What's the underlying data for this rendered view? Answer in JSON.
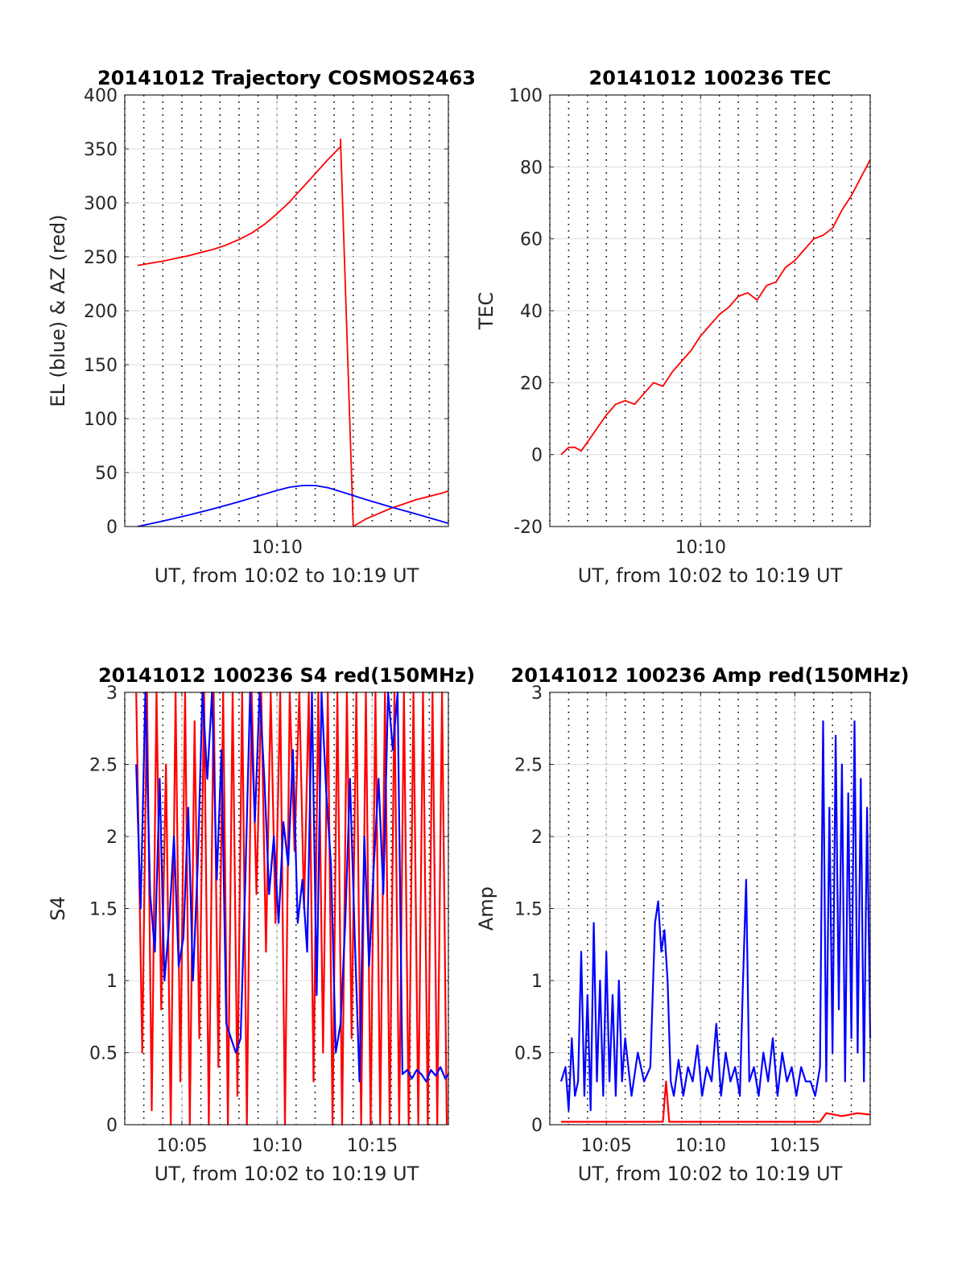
{
  "chart_data": [
    {
      "type": "line",
      "title": "20141012 Trajectory COSMOS2463",
      "xlabel": "UT, from 10:02 to 10:19 UT",
      "ylabel": "EL (blue) & AZ (red)",
      "xlim": [
        "10:02",
        "10:19"
      ],
      "ylim": [
        0,
        400
      ],
      "xticks": [
        "10:10"
      ],
      "yticks": [
        "0",
        "50",
        "100",
        "150",
        "200",
        "250",
        "300",
        "350",
        "400"
      ],
      "grid": true,
      "colors": {
        "AZ": "#ff0000",
        "EL": "#0000ff"
      },
      "series": [
        {
          "key": "AZ",
          "color": "#ff0000",
          "x": [
            "10:02:40",
            "10:03:20",
            "10:04:00",
            "10:04:40",
            "10:05:20",
            "10:06:00",
            "10:06:40",
            "10:07:20",
            "10:08:00",
            "10:08:40",
            "10:09:20",
            "10:10:00",
            "10:10:40",
            "10:11:20",
            "10:12:00",
            "10:12:40",
            "10:13:20",
            "10:13:20",
            "10:14:00",
            "10:14:40",
            "10:15:20",
            "10:16:00",
            "10:16:40",
            "10:17:20",
            "10:18:00",
            "10:18:40",
            "10:19:00"
          ],
          "values": [
            242,
            244,
            246,
            248.5,
            251,
            254,
            257,
            261,
            266,
            272,
            280,
            290,
            301,
            314,
            327,
            340,
            352,
            359,
            0,
            7,
            12,
            17,
            21,
            25,
            28,
            31,
            33
          ]
        },
        {
          "key": "EL",
          "color": "#0000ff",
          "x": [
            "10:02:40",
            "10:04:00",
            "10:05:20",
            "10:06:40",
            "10:08:00",
            "10:09:20",
            "10:10:00",
            "10:10:40",
            "10:11:20",
            "10:12:00",
            "10:12:40",
            "10:13:20",
            "10:14:40",
            "10:16:00",
            "10:17:20",
            "10:19:00"
          ],
          "values": [
            0,
            5,
            10.5,
            16.5,
            23,
            30,
            33.5,
            36.5,
            38,
            38,
            36,
            32.5,
            25,
            18,
            11.5,
            3
          ]
        }
      ]
    },
    {
      "type": "line",
      "title": "20141012 100236 TEC",
      "xlabel": "UT, from 10:02 to 10:19 UT",
      "ylabel": "TEC",
      "xlim": [
        "10:02",
        "10:19"
      ],
      "ylim": [
        -20,
        100
      ],
      "xticks": [
        "10:10"
      ],
      "yticks": [
        "-20",
        "0",
        "20",
        "40",
        "60",
        "80",
        "100"
      ],
      "grid": true,
      "series": [
        {
          "key": "TEC",
          "color": "#ff0000",
          "x": [
            "10:02:36",
            "10:03:00",
            "10:03:20",
            "10:03:40",
            "10:04:20",
            "10:05:00",
            "10:05:30",
            "10:06:00",
            "10:06:30",
            "10:07:00",
            "10:07:30",
            "10:08:00",
            "10:08:30",
            "10:09:00",
            "10:09:30",
            "10:10:00",
            "10:10:30",
            "10:11:00",
            "10:11:30",
            "10:12:00",
            "10:12:30",
            "10:13:00",
            "10:13:30",
            "10:14:00",
            "10:14:30",
            "10:15:00",
            "10:15:30",
            "10:16:00",
            "10:16:30",
            "10:17:00",
            "10:17:30",
            "10:18:00",
            "10:18:30",
            "10:19:00"
          ],
          "values": [
            0,
            2,
            2,
            1,
            6,
            11,
            14,
            15,
            14,
            17,
            20,
            19,
            23,
            26,
            29,
            33,
            36,
            39,
            41,
            44,
            45,
            43,
            47,
            48,
            52,
            54,
            57,
            60,
            61,
            63,
            68,
            72,
            77,
            82
          ]
        }
      ]
    },
    {
      "type": "line",
      "title": "20141012 100236 S4 red(150MHz)",
      "xlabel": "UT, from 10:02 to 10:19 UT",
      "ylabel": "S4",
      "xlim": [
        "10:02",
        "10:19"
      ],
      "ylim": [
        0,
        3
      ],
      "xticks": [
        "10:05",
        "10:10",
        "10:15"
      ],
      "yticks": [
        "0",
        "0.5",
        "1",
        "1.5",
        "2",
        "2.5",
        "3"
      ],
      "grid": true,
      "series": [
        {
          "key": "S4-red",
          "color": "#ff0000",
          "x": [
            "10:02:36",
            "10:02:55",
            "10:03:10",
            "10:03:25",
            "10:03:40",
            "10:03:55",
            "10:04:10",
            "10:04:25",
            "10:04:40",
            "10:04:55",
            "10:05:10",
            "10:05:25",
            "10:05:40",
            "10:05:55",
            "10:06:10",
            "10:06:25",
            "10:06:40",
            "10:06:55",
            "10:07:10",
            "10:07:25",
            "10:07:40",
            "10:07:55",
            "10:08:10",
            "10:08:25",
            "10:08:40",
            "10:08:55",
            "10:09:10",
            "10:09:25",
            "10:09:40",
            "10:09:55",
            "10:10:10",
            "10:10:25",
            "10:10:40",
            "10:10:55",
            "10:11:10",
            "10:11:25",
            "10:11:40",
            "10:11:55",
            "10:12:10",
            "10:12:25",
            "10:12:40",
            "10:12:55",
            "10:13:10",
            "10:13:25",
            "10:13:40",
            "10:13:55",
            "10:14:10",
            "10:14:25",
            "10:14:40",
            "10:14:55",
            "10:15:10",
            "10:15:25",
            "10:15:40",
            "10:15:55",
            "10:16:10",
            "10:16:25",
            "10:16:40",
            "10:16:55",
            "10:17:10",
            "10:17:25",
            "10:17:40",
            "10:17:55",
            "10:18:10",
            "10:18:25",
            "10:18:40",
            "10:18:55"
          ],
          "values": [
            3,
            0.5,
            3,
            0.1,
            3,
            0.8,
            2.5,
            0,
            3,
            0.3,
            3,
            0,
            2.8,
            0.6,
            3,
            0,
            3,
            0.4,
            3,
            0,
            3,
            0.2,
            3,
            0,
            3,
            1.6,
            3,
            1.2,
            3,
            1.4,
            3,
            0,
            3,
            1.9,
            3,
            1.5,
            3,
            0.3,
            3,
            0.5,
            3,
            0,
            3,
            0,
            3,
            0.6,
            3,
            0,
            3,
            0,
            3,
            0,
            3,
            0,
            3,
            0,
            3,
            0,
            3,
            0,
            3,
            0,
            3,
            0,
            3,
            0
          ]
        },
        {
          "key": "S4-blue",
          "color": "#0000ff",
          "x": [
            "10:02:36",
            "10:02:50",
            "10:03:05",
            "10:03:20",
            "10:03:35",
            "10:03:50",
            "10:04:05",
            "10:04:20",
            "10:04:35",
            "10:04:50",
            "10:05:05",
            "10:05:20",
            "10:05:35",
            "10:05:50",
            "10:06:05",
            "10:06:20",
            "10:06:35",
            "10:06:50",
            "10:07:05",
            "10:07:20",
            "10:07:35",
            "10:07:50",
            "10:08:05",
            "10:08:20",
            "10:08:35",
            "10:08:50",
            "10:09:05",
            "10:09:20",
            "10:09:35",
            "10:09:50",
            "10:10:05",
            "10:10:20",
            "10:10:35",
            "10:10:50",
            "10:11:05",
            "10:11:20",
            "10:11:35",
            "10:11:50",
            "10:12:05",
            "10:12:20",
            "10:12:35",
            "10:12:50",
            "10:13:05",
            "10:13:20",
            "10:13:35",
            "10:13:50",
            "10:14:05",
            "10:14:20",
            "10:14:35",
            "10:14:50",
            "10:15:05",
            "10:15:20",
            "10:15:35",
            "10:15:50",
            "10:16:05",
            "10:16:20",
            "10:16:35",
            "10:16:50",
            "10:17:05",
            "10:17:20",
            "10:17:35",
            "10:17:50",
            "10:18:05",
            "10:18:20",
            "10:18:35",
            "10:18:50",
            "10:19:00"
          ],
          "values": [
            2.5,
            1.5,
            3,
            1.6,
            1.2,
            2.4,
            1.0,
            1.4,
            2.0,
            1.1,
            1.3,
            2.2,
            1.0,
            1.8,
            3,
            2.4,
            3,
            1.7,
            2.6,
            0.7,
            0.6,
            0.5,
            0.6,
            1.7,
            3,
            2.1,
            3,
            2.4,
            1.6,
            2.0,
            1.4,
            2.1,
            1.8,
            2.6,
            1.4,
            1.7,
            1.2,
            3,
            0.9,
            3,
            2.3,
            1.8,
            0.5,
            0.7,
            1.4,
            2.4,
            1.3,
            0.3,
            2.0,
            1.1,
            1.8,
            2.4,
            1.6,
            3,
            2.6,
            3,
            0.35,
            0.38,
            0.32,
            0.38,
            0.35,
            0.3,
            0.38,
            0.34,
            0.4,
            0.32,
            0.35
          ]
        }
      ]
    },
    {
      "type": "line",
      "title": "20141012 100236 Amp red(150MHz)",
      "xlabel": "UT, from 10:02 to 10:19 UT",
      "ylabel": "Amp",
      "xlim": [
        "10:02",
        "10:19"
      ],
      "ylim": [
        0,
        3
      ],
      "xticks": [
        "10:05",
        "10:10",
        "10:15"
      ],
      "yticks": [
        "0",
        "0.5",
        "1",
        "1.5",
        "2",
        "2.5",
        "3"
      ],
      "grid": true,
      "series": [
        {
          "key": "Amp-red",
          "color": "#ff0000",
          "x": [
            "10:02:36",
            "10:08:00",
            "10:08:10",
            "10:08:20",
            "10:16:20",
            "10:16:40",
            "10:17:30",
            "10:18:20",
            "10:19:00"
          ],
          "values": [
            0.02,
            0.02,
            0.3,
            0.02,
            0.02,
            0.08,
            0.06,
            0.08,
            0.07
          ]
        },
        {
          "key": "Amp-blue",
          "color": "#0000ff",
          "x": [
            "10:02:36",
            "10:02:50",
            "10:03:00",
            "10:03:10",
            "10:03:20",
            "10:03:30",
            "10:03:40",
            "10:03:50",
            "10:04:00",
            "10:04:10",
            "10:04:20",
            "10:04:30",
            "10:04:40",
            "10:04:50",
            "10:05:00",
            "10:05:10",
            "10:05:20",
            "10:05:30",
            "10:05:40",
            "10:05:50",
            "10:06:00",
            "10:06:20",
            "10:06:40",
            "10:07:00",
            "10:07:20",
            "10:07:35",
            "10:07:45",
            "10:07:55",
            "10:08:05",
            "10:08:15",
            "10:08:25",
            "10:08:35",
            "10:08:50",
            "10:09:05",
            "10:09:20",
            "10:09:35",
            "10:09:50",
            "10:10:05",
            "10:10:20",
            "10:10:35",
            "10:10:50",
            "10:11:05",
            "10:11:20",
            "10:11:35",
            "10:11:50",
            "10:12:05",
            "10:12:15",
            "10:12:25",
            "10:12:35",
            "10:12:50",
            "10:13:05",
            "10:13:20",
            "10:13:35",
            "10:13:50",
            "10:14:05",
            "10:14:20",
            "10:14:35",
            "10:14:50",
            "10:15:05",
            "10:15:20",
            "10:15:35",
            "10:15:50",
            "10:16:05",
            "10:16:20",
            "10:16:30",
            "10:16:40",
            "10:16:50",
            "10:17:00",
            "10:17:10",
            "10:17:20",
            "10:17:30",
            "10:17:40",
            "10:17:50",
            "10:18:00",
            "10:18:10",
            "10:18:20",
            "10:18:30",
            "10:18:40",
            "10:18:50",
            "10:19:00"
          ],
          "values": [
            0.3,
            0.4,
            0.1,
            0.6,
            0.2,
            0.3,
            1.2,
            0.2,
            0.9,
            0.1,
            1.4,
            0.3,
            1.0,
            0.2,
            1.2,
            0.3,
            0.9,
            0.2,
            1.0,
            0.3,
            0.6,
            0.2,
            0.5,
            0.3,
            0.4,
            1.4,
            1.55,
            1.2,
            1.35,
            1.0,
            0.3,
            0.2,
            0.45,
            0.2,
            0.4,
            0.3,
            0.55,
            0.2,
            0.4,
            0.3,
            0.7,
            0.2,
            0.5,
            0.3,
            0.4,
            0.2,
            1.0,
            1.7,
            0.3,
            0.4,
            0.2,
            0.5,
            0.3,
            0.6,
            0.2,
            0.5,
            0.3,
            0.4,
            0.2,
            0.4,
            0.3,
            0.3,
            0.2,
            0.4,
            2.8,
            0.3,
            2.2,
            0.5,
            2.7,
            0.8,
            2.5,
            0.3,
            2.3,
            0.6,
            2.8,
            0.5,
            2.4,
            0.3,
            2.2,
            0.6
          ]
        }
      ]
    }
  ]
}
